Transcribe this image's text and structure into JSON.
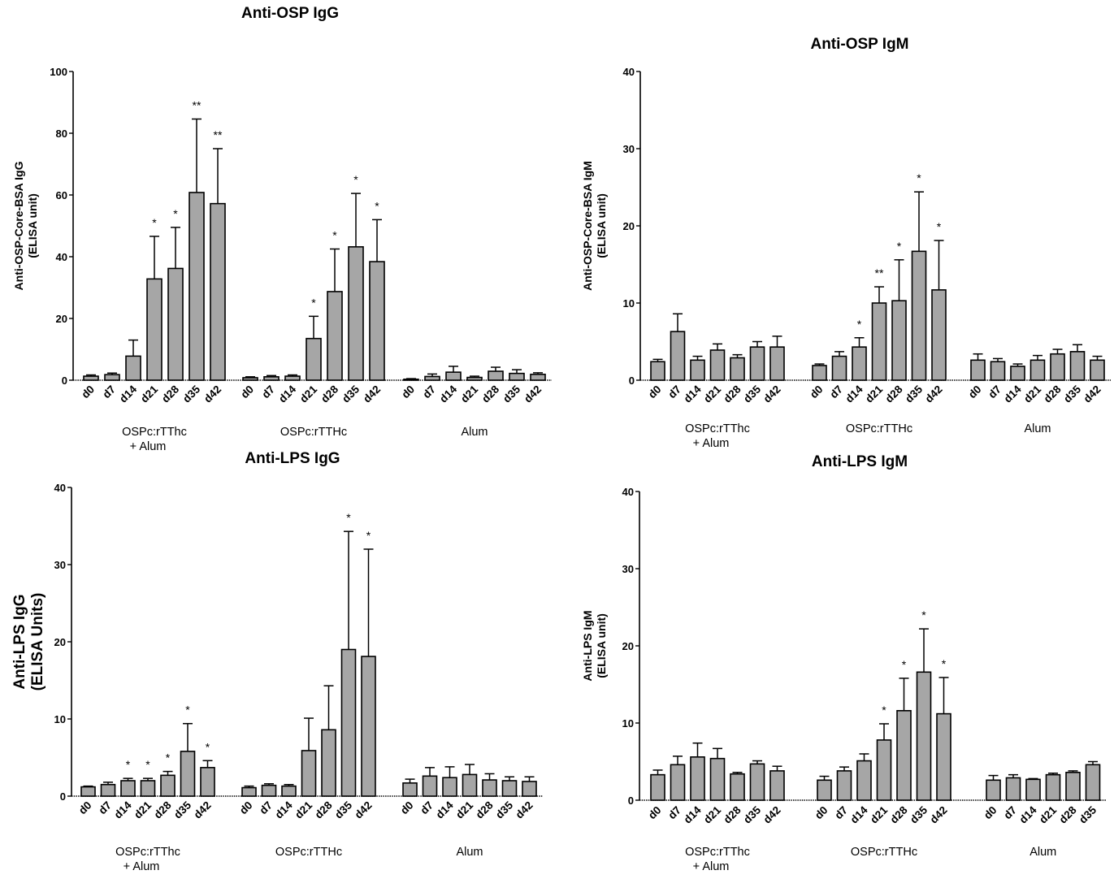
{
  "chart_data": [
    {
      "type": "bar",
      "title": "Anti-OSP IgG",
      "ylabel": "Anti-OSP-Core-BSA IgG\n(ELISA unit)",
      "ylim": [
        0,
        100
      ],
      "yticks": [
        0,
        20,
        40,
        60,
        80,
        100
      ],
      "groups": [
        "OSPc:rTThc\n+ Alum",
        "OSPc:rTTHc",
        "Alum"
      ],
      "categories": [
        [
          "d0",
          "d7",
          "d14",
          "d21",
          "d28",
          "d35",
          "d42"
        ],
        [
          "d0",
          "d7",
          "d14",
          "d21",
          "d28",
          "d35",
          "d42"
        ],
        [
          "d0",
          "d7",
          "d14",
          "d21",
          "d28",
          "d35",
          "d42"
        ]
      ],
      "values": [
        [
          1.3,
          1.8,
          7.8,
          32.8,
          36.2,
          60.8,
          57.2
        ],
        [
          0.8,
          1.1,
          1.3,
          13.5,
          28.7,
          43.2,
          38.4
        ],
        [
          0.3,
          1.2,
          2.6,
          0.9,
          2.9,
          2.2,
          1.9
        ]
      ],
      "errors": [
        [
          0.4,
          0.5,
          5.2,
          13.8,
          13.3,
          23.8,
          17.8
        ],
        [
          0.3,
          0.4,
          0.4,
          7.2,
          13.8,
          17.3,
          13.6
        ],
        [
          0.2,
          0.8,
          1.9,
          0.4,
          1.3,
          1.2,
          0.5
        ]
      ],
      "annotations": [
        [
          "",
          "",
          "",
          "*",
          "*",
          "**",
          "**"
        ],
        [
          "",
          "",
          "",
          "*",
          "*",
          "*",
          "*"
        ],
        [
          "",
          "",
          "",
          "",
          "",
          "",
          ""
        ]
      ]
    },
    {
      "type": "bar",
      "title": "Anti-OSP IgM",
      "ylabel": "Anti-OSP-Core-BSA IgM\n(ELISA unit)",
      "ylim": [
        0,
        40
      ],
      "yticks": [
        0,
        10,
        20,
        30,
        40
      ],
      "groups": [
        "OSPc:rTThc\n+ Alum",
        "OSPc:rTTHc",
        "Alum"
      ],
      "categories": [
        [
          "d0",
          "d7",
          "d14",
          "d21",
          "d28",
          "d35",
          "d42"
        ],
        [
          "d0",
          "d7",
          "d14",
          "d21",
          "d28",
          "d35",
          "d42"
        ],
        [
          "d0",
          "d7",
          "d14",
          "d21",
          "d28",
          "d35",
          "d42"
        ]
      ],
      "values": [
        [
          2.4,
          6.3,
          2.6,
          3.9,
          2.9,
          4.3,
          4.3
        ],
        [
          1.9,
          3.1,
          4.3,
          10.0,
          10.3,
          16.7,
          11.7
        ],
        [
          2.6,
          2.4,
          1.8,
          2.6,
          3.4,
          3.7,
          2.6
        ]
      ],
      "errors": [
        [
          0.3,
          2.3,
          0.5,
          0.8,
          0.4,
          0.7,
          1.4
        ],
        [
          0.2,
          0.6,
          1.2,
          2.1,
          5.3,
          7.7,
          6.4
        ],
        [
          0.8,
          0.4,
          0.3,
          0.6,
          0.6,
          0.9,
          0.5
        ]
      ],
      "annotations": [
        [
          "",
          "",
          "",
          "",
          "",
          "",
          ""
        ],
        [
          "",
          "",
          "*",
          "**",
          "*",
          "*",
          "*"
        ],
        [
          "",
          "",
          "",
          "",
          "",
          "",
          ""
        ]
      ]
    },
    {
      "type": "bar",
      "title": "Anti-LPS IgG",
      "ylabel": "Anti-LPS IgG\n(ELISA Units)",
      "ylim": [
        0,
        40
      ],
      "yticks": [
        0,
        10,
        20,
        30,
        40
      ],
      "groups": [
        "OSPc:rTThc\n+ Alum",
        "OSPc:rTTHc",
        "Alum"
      ],
      "categories": [
        [
          "d0",
          "d7",
          "d14",
          "d21",
          "d28",
          "d35",
          "d42"
        ],
        [
          "d0",
          "d7",
          "d14",
          "d21",
          "d28",
          "d35",
          "d42"
        ],
        [
          "d0",
          "d7",
          "d14",
          "d21",
          "d28",
          "d35",
          "d42"
        ]
      ],
      "values": [
        [
          1.2,
          1.5,
          2.0,
          2.0,
          2.7,
          5.8,
          3.7
        ],
        [
          1.1,
          1.4,
          1.3,
          5.9,
          8.6,
          19.0,
          18.1
        ],
        [
          1.7,
          2.6,
          2.4,
          2.8,
          2.1,
          2.0,
          1.9
        ]
      ],
      "errors": [
        [
          0.1,
          0.3,
          0.3,
          0.3,
          0.5,
          3.6,
          0.9
        ],
        [
          0.2,
          0.2,
          0.2,
          4.2,
          5.7,
          15.3,
          13.9
        ],
        [
          0.5,
          1.1,
          1.4,
          1.3,
          0.8,
          0.5,
          0.6
        ]
      ],
      "annotations": [
        [
          "",
          "",
          "*",
          "*",
          "*",
          "*",
          "*"
        ],
        [
          "",
          "",
          "",
          "",
          "",
          "*",
          "*"
        ],
        [
          "",
          "",
          "",
          "",
          "",
          "",
          ""
        ]
      ]
    },
    {
      "type": "bar",
      "title": "Anti-LPS IgM",
      "ylabel": "Anti-LPS IgM\n(ELISA unit)",
      "ylim": [
        0,
        40
      ],
      "yticks": [
        0,
        10,
        20,
        30,
        40
      ],
      "groups": [
        "OSPc:rTThc\n+ Alum",
        "OSPc:rTTHc",
        "Alum"
      ],
      "categories": [
        [
          "d0",
          "d7",
          "d14",
          "d21",
          "d28",
          "d35",
          "d42"
        ],
        [
          "d0",
          "d7",
          "d14",
          "d21",
          "d28",
          "d35",
          "d42"
        ],
        [
          "d0",
          "d7",
          "d14",
          "d21",
          "d28",
          "d35"
        ]
      ],
      "values": [
        [
          3.3,
          4.6,
          5.6,
          5.4,
          3.4,
          4.7,
          3.8
        ],
        [
          2.6,
          3.8,
          5.1,
          7.8,
          11.6,
          16.6,
          11.2
        ],
        [
          2.6,
          2.9,
          2.7,
          3.3,
          3.6,
          4.6
        ]
      ],
      "errors": [
        [
          0.6,
          1.1,
          1.8,
          1.3,
          0.2,
          0.4,
          0.6
        ],
        [
          0.5,
          0.5,
          0.9,
          2.1,
          4.2,
          5.6,
          4.7
        ],
        [
          0.6,
          0.4,
          0.1,
          0.2,
          0.2,
          0.4
        ]
      ],
      "annotations": [
        [
          "",
          "",
          "",
          "",
          "",
          "",
          ""
        ],
        [
          "",
          "",
          "",
          "*",
          "*",
          "*",
          "*"
        ],
        [
          "",
          "",
          "",
          "",
          "",
          ""
        ]
      ]
    }
  ]
}
